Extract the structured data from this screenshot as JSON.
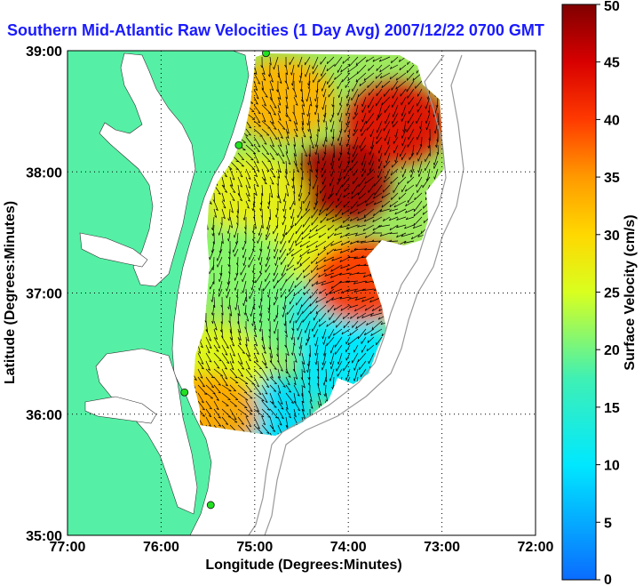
{
  "chart_data": {
    "type": "heatmap",
    "title": "Southern Mid-Atlantic Raw Velocities (1 Day Avg) 2007/12/22 0700 GMT",
    "xlabel": "Longitude (Degrees:Minutes)",
    "ylabel": "Latitude (Degrees:Minutes)",
    "xlim": [
      -77,
      -72
    ],
    "ylim": [
      35,
      39
    ],
    "x_ticks": [
      {
        "value": -77,
        "label": "77:00"
      },
      {
        "value": -76,
        "label": "76:00"
      },
      {
        "value": -75,
        "label": "75:00"
      },
      {
        "value": -74,
        "label": "74:00"
      },
      {
        "value": -73,
        "label": "73:00"
      },
      {
        "value": -72,
        "label": "72:00"
      }
    ],
    "y_ticks": [
      {
        "value": 35,
        "label": "35:00"
      },
      {
        "value": 36,
        "label": "36:00"
      },
      {
        "value": 37,
        "label": "37:00"
      },
      {
        "value": 38,
        "label": "38:00"
      },
      {
        "value": 39,
        "label": "39:00"
      }
    ],
    "grid": true,
    "colorbar": {
      "label": "Surface Velocity (cm/s)",
      "range": [
        0,
        50
      ],
      "ticks": [
        "0",
        "5",
        "10",
        "15",
        "20",
        "25",
        "30",
        "35",
        "40",
        "45",
        "50"
      ],
      "colormap": "jet"
    },
    "stations": [
      {
        "lon": -74.88,
        "lat": 38.98
      },
      {
        "lon": -75.17,
        "lat": 38.22
      },
      {
        "lon": -75.75,
        "lat": 36.18
      },
      {
        "lon": -75.47,
        "lat": 35.25
      }
    ],
    "field_regions": [
      {
        "lon": -73.5,
        "lat": 38.4,
        "speed": 44
      },
      {
        "lon": -74.1,
        "lat": 37.9,
        "speed": 48
      },
      {
        "lon": -74.7,
        "lat": 38.6,
        "speed": 33
      },
      {
        "lon": -75.0,
        "lat": 37.8,
        "speed": 27
      },
      {
        "lon": -74.5,
        "lat": 37.3,
        "speed": 26
      },
      {
        "lon": -75.2,
        "lat": 37.2,
        "speed": 21
      },
      {
        "lon": -74.6,
        "lat": 36.8,
        "speed": 20
      },
      {
        "lon": -74.1,
        "lat": 36.8,
        "speed": 12
      },
      {
        "lon": -74.0,
        "lat": 36.4,
        "speed": 10
      },
      {
        "lon": -74.9,
        "lat": 36.0,
        "speed": 9
      },
      {
        "lon": -75.4,
        "lat": 36.4,
        "speed": 26
      },
      {
        "lon": -73.85,
        "lat": 37.1,
        "speed": 40
      },
      {
        "lon": -75.5,
        "lat": 36.0,
        "speed": 34
      }
    ]
  }
}
